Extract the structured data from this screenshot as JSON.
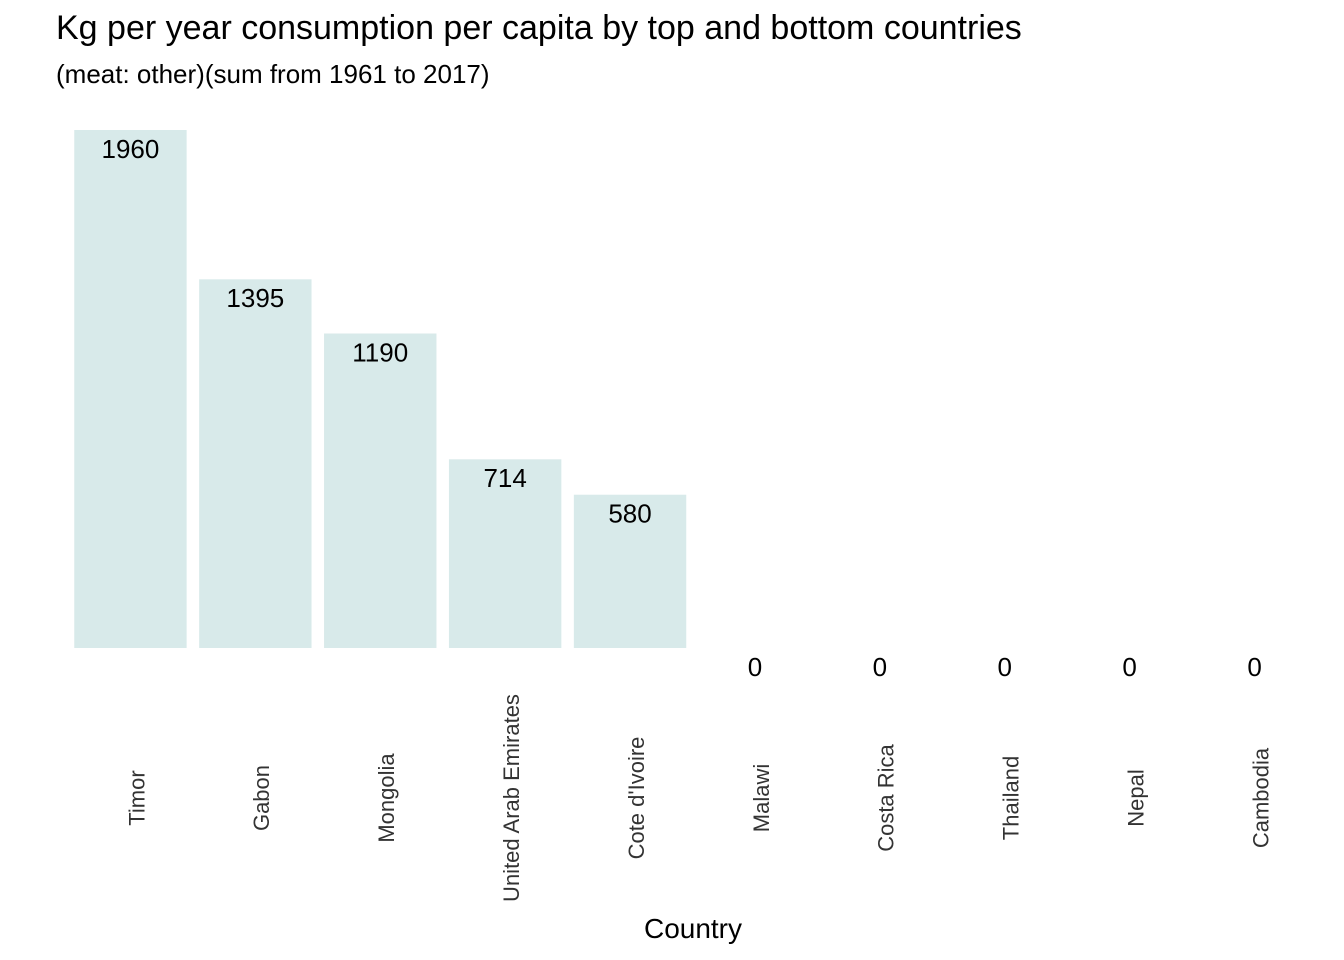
{
  "chart_data": {
    "type": "bar",
    "title": "Kg per year consumption per capita by top and bottom countries",
    "subtitle": "(meat: other)(sum from 1961 to 2017)",
    "xlabel": "Country",
    "ylabel": "",
    "categories": [
      "Timor",
      "Gabon",
      "Mongolia",
      "United Arab Emirates",
      "Cote d'Ivoire",
      "Malawi",
      "Costa Rica",
      "Thailand",
      "Nepal",
      "Cambodia"
    ],
    "values": [
      1960,
      1395,
      1190,
      714,
      580,
      0,
      0,
      0,
      0,
      0
    ],
    "data_labels": [
      "1960",
      "1395",
      "1190",
      "714",
      "580",
      "0",
      "0",
      "0",
      "0",
      "0"
    ],
    "ylim": [
      0,
      1960
    ],
    "grid": false,
    "legend": "none",
    "colors": {
      "bar": "#d8eaea",
      "text": "#000000",
      "tick_text": "#333333"
    }
  }
}
